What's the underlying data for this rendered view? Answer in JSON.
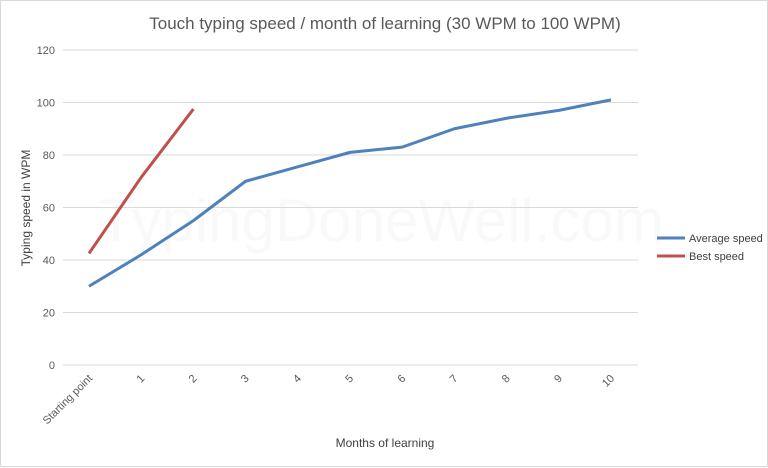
{
  "chart_data": {
    "type": "line",
    "title": "Touch typing speed / month of learning (30 WPM to 100 WPM)",
    "xlabel": "Months of learning",
    "ylabel": "Typing speed in WPM",
    "categories": [
      "Starting point",
      "1",
      "2",
      "3",
      "4",
      "5",
      "6",
      "7",
      "8",
      "9",
      "10"
    ],
    "ylim": [
      0,
      120
    ],
    "yticks": [
      0,
      20,
      40,
      60,
      80,
      100,
      120
    ],
    "grid": true,
    "legend_position": "right",
    "watermark": "TypingDoneWell.com",
    "series": [
      {
        "name": "Average speed",
        "color": "#4f81bd",
        "values": [
          30,
          42,
          55,
          70,
          75.5,
          81,
          83,
          90,
          94,
          97,
          101
        ]
      },
      {
        "name": "Best speed",
        "color": "#c0504d",
        "values": [
          42.5,
          71.5,
          97.5,
          null,
          null,
          null,
          null,
          null,
          null,
          null,
          null
        ]
      }
    ]
  }
}
